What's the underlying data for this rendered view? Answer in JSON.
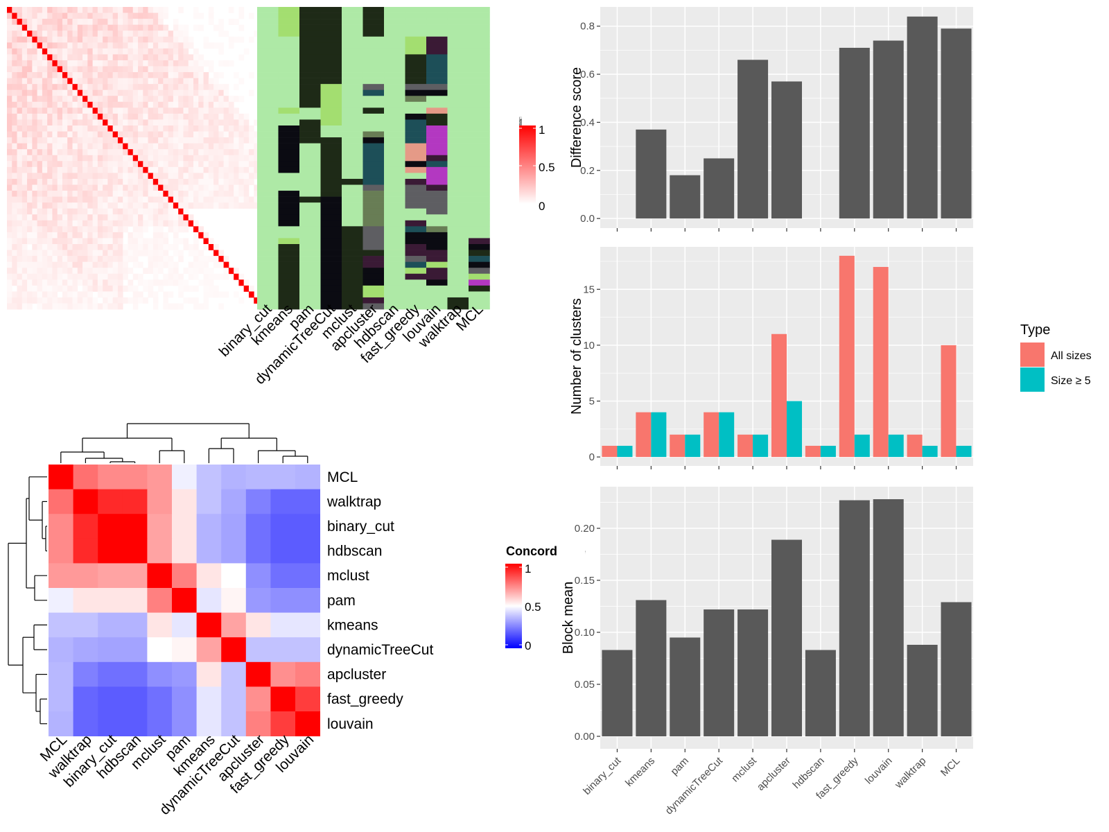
{
  "colors": {
    "similarity_high": "#ff0000",
    "similarity_low": "#ffffff",
    "concord_high": "#ff0000",
    "concord_mid": "#ffffff",
    "concord_low": "#0000ff",
    "bar_fill": "#595959",
    "panel_bg": "#ebebeb",
    "all_sizes": "#f8766d",
    "size_ge5": "#00bfc4"
  },
  "chart_data": [
    {
      "type": "heatmap",
      "name": "similarity",
      "legend_title": "Similarity",
      "legend_ticks": [
        "1",
        "0.5",
        "0"
      ],
      "size": 51,
      "colorscale": [
        "#ffffff",
        "#ff0000"
      ],
      "range": [
        0,
        1
      ]
    },
    {
      "type": "heatmap",
      "name": "cluster-membership",
      "columns": [
        "binary_cut",
        "kmeans",
        "pam",
        "dynamicTreeCut",
        "mclust",
        "apcluster",
        "hdbscan",
        "fast_greedy",
        "louvain",
        "walktrap",
        "MCL"
      ],
      "palette": [
        "#aee9a6",
        "#1e2a17",
        "#a3de70",
        "#0b0b12",
        "#1d4f58",
        "#687d55",
        "#5e5e62",
        "#c03ccc",
        "#3a1a35",
        "#e59a87",
        "#b338c1"
      ]
    },
    {
      "type": "heatmap",
      "name": "concordance",
      "legend_title": "Concordance",
      "legend_ticks": [
        "1",
        "0.5",
        "0"
      ],
      "rows": [
        "MCL",
        "walktrap",
        "binary_cut",
        "hdbscan",
        "mclust",
        "pam",
        "kmeans",
        "dynamicTreeCut",
        "apcluster",
        "fast_greedy",
        "louvain"
      ],
      "values": [
        [
          1.0,
          0.78,
          0.73,
          0.73,
          0.7,
          0.47,
          0.38,
          0.35,
          0.36,
          0.36,
          0.35
        ],
        [
          0.78,
          1.0,
          0.92,
          0.92,
          0.7,
          0.55,
          0.38,
          0.33,
          0.25,
          0.2,
          0.2
        ],
        [
          0.73,
          0.92,
          1.0,
          1.0,
          0.68,
          0.55,
          0.35,
          0.32,
          0.22,
          0.18,
          0.18
        ],
        [
          0.73,
          0.92,
          1.0,
          1.0,
          0.68,
          0.55,
          0.35,
          0.32,
          0.22,
          0.18,
          0.18
        ],
        [
          0.7,
          0.7,
          0.68,
          0.68,
          1.0,
          0.75,
          0.55,
          0.5,
          0.28,
          0.22,
          0.22
        ],
        [
          0.47,
          0.55,
          0.55,
          0.55,
          0.75,
          1.0,
          0.45,
          0.52,
          0.3,
          0.28,
          0.28
        ],
        [
          0.38,
          0.38,
          0.35,
          0.35,
          0.55,
          0.45,
          1.0,
          0.68,
          0.55,
          0.45,
          0.45
        ],
        [
          0.35,
          0.33,
          0.32,
          0.32,
          0.5,
          0.52,
          0.68,
          1.0,
          0.38,
          0.38,
          0.38
        ],
        [
          0.36,
          0.25,
          0.22,
          0.22,
          0.28,
          0.3,
          0.55,
          0.38,
          1.0,
          0.72,
          0.75
        ],
        [
          0.36,
          0.2,
          0.18,
          0.18,
          0.22,
          0.28,
          0.45,
          0.38,
          0.72,
          1.0,
          0.88
        ],
        [
          0.35,
          0.2,
          0.18,
          0.18,
          0.22,
          0.28,
          0.45,
          0.38,
          0.75,
          0.88,
          1.0
        ]
      ]
    },
    {
      "type": "bar",
      "name": "difference-score",
      "categories": [
        "binary_cut",
        "kmeans",
        "pam",
        "dynamicTreeCut",
        "mclust",
        "apcluster",
        "hdbscan",
        "fast_greedy",
        "louvain",
        "walktrap",
        "MCL"
      ],
      "values": [
        0,
        0.37,
        0.18,
        0.25,
        0.66,
        0.57,
        0,
        0.71,
        0.74,
        0.84,
        0.79
      ],
      "ylabel": "Difference score",
      "ylim": [
        -0.04,
        0.88
      ],
      "yticks": [
        0,
        0.2,
        0.4,
        0.6,
        0.8
      ],
      "ytick_labels": [
        "0.0",
        "0.2",
        "0.4",
        "0.6",
        "0.8"
      ]
    },
    {
      "type": "bar",
      "name": "number-of-clusters",
      "categories": [
        "binary_cut",
        "kmeans",
        "pam",
        "dynamicTreeCut",
        "mclust",
        "apcluster",
        "hdbscan",
        "fast_greedy",
        "louvain",
        "walktrap",
        "MCL"
      ],
      "series": [
        {
          "name": "All sizes",
          "values": [
            1,
            4,
            2,
            4,
            2,
            11,
            1,
            18,
            17,
            2,
            10
          ]
        },
        {
          "name": "Size ≥ 5",
          "values": [
            1,
            4,
            2,
            4,
            2,
            5,
            1,
            2,
            2,
            1,
            1
          ]
        }
      ],
      "ylabel": "Number of clusters",
      "legend_title": "Type",
      "ylim": [
        -0.8,
        18.8
      ],
      "yticks": [
        0,
        5,
        10,
        15
      ],
      "ytick_labels": [
        "0",
        "5",
        "10",
        "15"
      ]
    },
    {
      "type": "bar",
      "name": "block-mean",
      "categories": [
        "binary_cut",
        "kmeans",
        "pam",
        "dynamicTreeCut",
        "mclust",
        "apcluster",
        "hdbscan",
        "fast_greedy",
        "louvain",
        "walktrap",
        "MCL"
      ],
      "values": [
        0.083,
        0.131,
        0.095,
        0.122,
        0.122,
        0.189,
        0.083,
        0.227,
        0.228,
        0.088,
        0.129
      ],
      "ylabel": "Block mean",
      "ylim": [
        -0.012,
        0.24
      ],
      "yticks": [
        0,
        0.05,
        0.1,
        0.15,
        0.2
      ],
      "ytick_labels": [
        "0.00",
        "0.05",
        "0.10",
        "0.15",
        "0.20"
      ]
    }
  ]
}
